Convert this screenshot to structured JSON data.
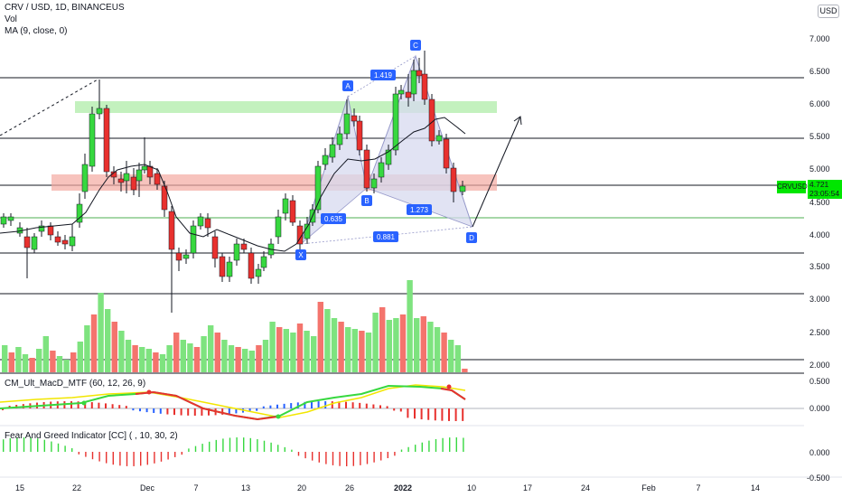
{
  "header": {
    "symbol_line": "CRV / USD, 1D, BINANCEUS",
    "vol_label": "Vol",
    "ma_label": "MA (9, close, 0)"
  },
  "currency_button": "USD",
  "price_axis": {
    "ticks": [
      "7.000",
      "6.500",
      "6.000",
      "5.500",
      "5.000",
      "4.500",
      "4.000",
      "3.500",
      "3.000",
      "2.500",
      "2.000"
    ]
  },
  "current_price": {
    "symbol": "CRVUSD",
    "value": "4.721",
    "countdown": "23:05:54"
  },
  "time_axis": {
    "ticks": [
      "15",
      "22",
      "Dec",
      "7",
      "13",
      "20",
      "26",
      "2022",
      "10",
      "17",
      "24",
      "Feb",
      "7",
      "14"
    ]
  },
  "pattern_points": [
    "X",
    "A",
    "B",
    "C",
    "D"
  ],
  "pattern_ratios": {
    "xa_b": "0.635",
    "ab_c": "1.419",
    "bc_d": "1.273",
    "xa_d": "0.881"
  },
  "macd": {
    "label": "CM_Ult_MacD_MTF (60, 12, 26, 9)",
    "ticks": [
      "0.500",
      "0.000"
    ]
  },
  "fear_greed": {
    "label": "Fear And Greed Indicator [CC] ( , 10, 30, 2)",
    "ticks": [
      "0.000",
      "-0.500"
    ]
  },
  "colors": {
    "up": "#37d83f",
    "down": "#e8312e",
    "vol_up": "#7ee37f",
    "vol_down": "#f4746d",
    "resistance_zone": "#b9efb3",
    "supply_zone": "#f4a9a1",
    "pattern_fill": "#d7d9ef",
    "label_blue": "#2962ff"
  }
}
